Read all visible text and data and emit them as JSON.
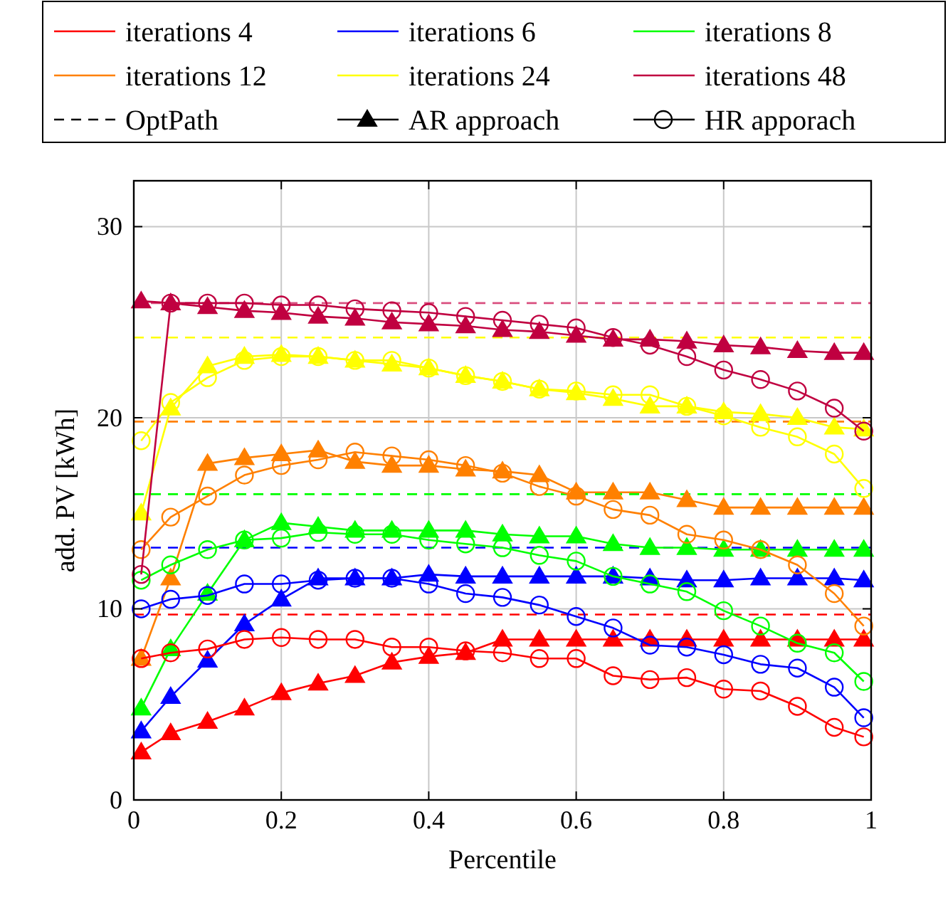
{
  "chart_data": {
    "type": "line",
    "xlabel": "Percentile",
    "ylabel": "add. PV [kWh]",
    "x": [
      0.01,
      0.05,
      0.1,
      0.15,
      0.2,
      0.25,
      0.3,
      0.35,
      0.4,
      0.45,
      0.5,
      0.55,
      0.6,
      0.65,
      0.7,
      0.75,
      0.8,
      0.85,
      0.9,
      0.95,
      0.99
    ],
    "xlim": [
      0,
      1
    ],
    "xticks": [
      0,
      0.2,
      0.4,
      0.6,
      0.8,
      1
    ],
    "ylim": [
      0,
      32.4
    ],
    "yticks": [
      0,
      10,
      20,
      30
    ],
    "grid": true,
    "legend": "top",
    "series": [
      {
        "name": "iterations 4",
        "color": "#ff0000",
        "marker": "triangle",
        "values": [
          2.5,
          3.5,
          4.1,
          4.8,
          5.6,
          6.1,
          6.5,
          7.2,
          7.5,
          7.7,
          8.4,
          8.4,
          8.4,
          8.4,
          8.4,
          8.4,
          8.4,
          8.4,
          8.4,
          8.4,
          8.4
        ]
      },
      {
        "name": "iterations 6",
        "color": "#0000ff",
        "marker": "triangle",
        "values": [
          3.6,
          5.4,
          7.3,
          9.2,
          10.5,
          11.6,
          11.6,
          11.6,
          11.8,
          11.7,
          11.7,
          11.7,
          11.7,
          11.7,
          11.6,
          11.5,
          11.5,
          11.6,
          11.6,
          11.6,
          11.5
        ]
      },
      {
        "name": "iterations 8",
        "color": "#00ff00",
        "marker": "triangle",
        "values": [
          4.8,
          7.9,
          10.8,
          13.6,
          14.5,
          14.3,
          14.1,
          14.1,
          14.1,
          14.1,
          13.9,
          13.8,
          13.8,
          13.4,
          13.2,
          13.2,
          13.1,
          13.1,
          13.1,
          13.1,
          13.1
        ]
      },
      {
        "name": "iterations 12",
        "color": "#ff8000",
        "marker": "triangle",
        "values": [
          7.4,
          11.6,
          17.6,
          17.9,
          18.1,
          18.3,
          17.7,
          17.5,
          17.5,
          17.3,
          17.2,
          17.0,
          16.1,
          16.1,
          16.1,
          15.7,
          15.3,
          15.3,
          15.3,
          15.3,
          15.3
        ]
      },
      {
        "name": "iterations 24",
        "color": "#ffff00",
        "marker": "triangle",
        "values": [
          15.0,
          20.5,
          22.7,
          23.2,
          23.3,
          23.2,
          23.0,
          22.8,
          22.6,
          22.2,
          21.9,
          21.5,
          21.3,
          21.0,
          20.6,
          20.6,
          20.3,
          20.2,
          20.0,
          19.5,
          19.4
        ]
      },
      {
        "name": "iterations 48",
        "color": "#c00040",
        "marker": "triangle",
        "values": [
          26.1,
          26.0,
          25.8,
          25.6,
          25.5,
          25.3,
          25.2,
          25.0,
          24.9,
          24.8,
          24.6,
          24.5,
          24.3,
          24.1,
          24.1,
          24.0,
          23.8,
          23.7,
          23.5,
          23.4,
          23.4
        ]
      },
      {
        "color": "#ff0000",
        "marker": "circle",
        "values": [
          7.4,
          7.7,
          7.9,
          8.4,
          8.5,
          8.4,
          8.4,
          8.0,
          8.0,
          7.8,
          7.7,
          7.4,
          7.4,
          6.5,
          6.3,
          6.4,
          5.8,
          5.7,
          4.9,
          3.8,
          3.3
        ]
      },
      {
        "color": "#0000ff",
        "marker": "circle",
        "values": [
          10.0,
          10.5,
          10.7,
          11.3,
          11.3,
          11.5,
          11.6,
          11.6,
          11.3,
          10.8,
          10.6,
          10.2,
          9.6,
          9.0,
          8.1,
          8.0,
          7.6,
          7.1,
          6.9,
          5.9,
          4.3
        ]
      },
      {
        "color": "#00ff00",
        "marker": "circle",
        "values": [
          11.5,
          12.3,
          13.1,
          13.6,
          13.7,
          14.0,
          13.9,
          13.9,
          13.6,
          13.4,
          13.2,
          12.8,
          12.5,
          11.7,
          11.3,
          10.9,
          9.9,
          9.1,
          8.2,
          7.7,
          6.2
        ]
      },
      {
        "color": "#ff8000",
        "marker": "circle",
        "values": [
          13.1,
          14.8,
          15.9,
          17.0,
          17.5,
          17.8,
          18.2,
          18.0,
          17.8,
          17.5,
          17.1,
          16.4,
          15.9,
          15.2,
          14.9,
          13.9,
          13.6,
          13.1,
          12.3,
          10.8,
          9.1
        ]
      },
      {
        "color": "#ffff00",
        "marker": "circle",
        "values": [
          18.8,
          20.8,
          22.1,
          23.0,
          23.2,
          23.2,
          23.0,
          23.0,
          22.6,
          22.2,
          21.9,
          21.5,
          21.4,
          21.2,
          21.2,
          20.6,
          20.1,
          19.5,
          19.0,
          18.1,
          16.3
        ]
      },
      {
        "color": "#c00040",
        "marker": "circle",
        "values": [
          11.8,
          26.0,
          26.0,
          26.0,
          25.9,
          25.9,
          25.7,
          25.6,
          25.5,
          25.3,
          25.1,
          24.9,
          24.7,
          24.2,
          23.8,
          23.2,
          22.5,
          22.0,
          21.4,
          20.5,
          19.3
        ]
      }
    ],
    "ref_lines": [
      {
        "axis": "y",
        "value": 9.7,
        "color": "#ff0000",
        "line_style": "dashed"
      },
      {
        "axis": "y",
        "value": 13.2,
        "color": "#0000ff",
        "line_style": "dashed"
      },
      {
        "axis": "y",
        "value": 16,
        "color": "#00ff00",
        "line_style": "dashed"
      },
      {
        "axis": "y",
        "value": 19.8,
        "color": "#ff8000",
        "line_style": "dashed"
      },
      {
        "axis": "y",
        "value": 24.2,
        "color": "#ffff00",
        "line_style": "dashed"
      },
      {
        "axis": "y",
        "value": 26,
        "color": "#d95080",
        "line_style": "dashed"
      }
    ],
    "annotations": [
      "OptPath",
      "AR approach",
      "HR apporach"
    ]
  }
}
